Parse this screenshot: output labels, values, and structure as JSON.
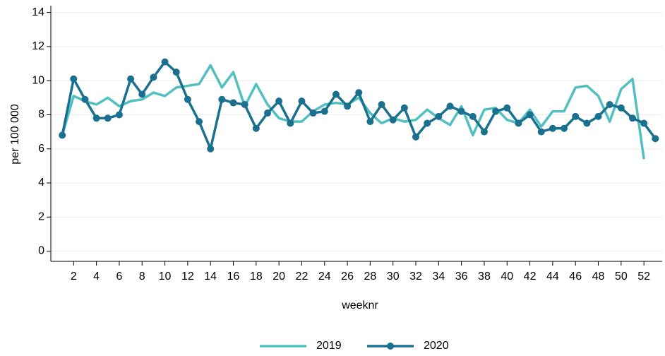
{
  "chart_data": {
    "type": "line",
    "x_label": "weeknr",
    "y_label": "per 100 000",
    "x": [
      1,
      2,
      3,
      4,
      5,
      6,
      7,
      8,
      9,
      10,
      11,
      12,
      13,
      14,
      15,
      16,
      17,
      18,
      19,
      20,
      21,
      22,
      23,
      24,
      25,
      26,
      27,
      28,
      29,
      30,
      31,
      32,
      33,
      34,
      35,
      36,
      37,
      38,
      39,
      40,
      41,
      42,
      43,
      44,
      45,
      46,
      47,
      48,
      49,
      50,
      51,
      52,
      53
    ],
    "series": [
      {
        "name": "2019",
        "color": "#52bfc0",
        "markers": false,
        "values": [
          6.8,
          9.1,
          8.8,
          8.6,
          9.0,
          8.5,
          8.8,
          8.9,
          9.3,
          9.1,
          9.6,
          9.7,
          9.8,
          10.9,
          9.6,
          10.5,
          8.5,
          9.8,
          8.6,
          7.8,
          7.6,
          7.6,
          8.2,
          8.6,
          8.7,
          8.6,
          9.0,
          8.1,
          7.5,
          7.8,
          7.6,
          7.7,
          8.3,
          7.8,
          7.4,
          8.5,
          6.8,
          8.3,
          8.4,
          7.7,
          7.5,
          8.3,
          7.3,
          8.2,
          8.2,
          9.6,
          9.7,
          9.1,
          7.6,
          9.5,
          10.1,
          5.4,
          null
        ]
      },
      {
        "name": "2020",
        "color": "#19708f",
        "markers": true,
        "values": [
          6.8,
          10.1,
          8.9,
          7.8,
          7.8,
          8.0,
          10.1,
          9.2,
          10.2,
          11.1,
          10.5,
          8.9,
          7.6,
          6.0,
          8.9,
          8.7,
          8.6,
          7.2,
          8.1,
          8.8,
          7.5,
          8.8,
          8.1,
          8.2,
          9.2,
          8.5,
          9.3,
          7.6,
          8.6,
          7.7,
          8.4,
          6.7,
          7.5,
          7.9,
          8.5,
          8.2,
          7.9,
          7.0,
          8.2,
          8.4,
          7.5,
          8.0,
          7.0,
          7.2,
          7.2,
          7.9,
          7.5,
          7.9,
          8.6,
          8.4,
          7.8,
          7.5,
          6.6
        ]
      }
    ],
    "xlim": [
      0,
      53.6
    ],
    "xticks": [
      2,
      4,
      6,
      8,
      10,
      12,
      14,
      16,
      18,
      20,
      22,
      24,
      26,
      28,
      30,
      32,
      34,
      36,
      38,
      40,
      42,
      44,
      46,
      48,
      50,
      52
    ],
    "ylim": [
      -0.6,
      14.4
    ],
    "yticks": [
      0,
      2,
      4,
      6,
      8,
      10,
      12,
      14
    ],
    "grid": true,
    "legend": "bottom"
  }
}
